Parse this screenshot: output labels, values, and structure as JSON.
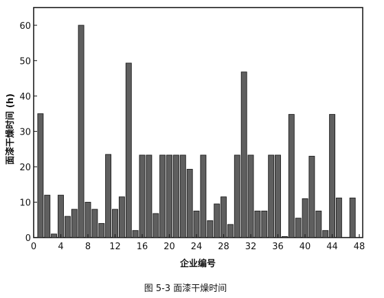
{
  "chart_data": {
    "type": "bar",
    "title": "",
    "xlabel": "企业编号",
    "ylabel": "面漆干燥时间 (h)",
    "x": [
      1,
      2,
      3,
      4,
      5,
      6,
      7,
      8,
      9,
      10,
      11,
      12,
      13,
      14,
      15,
      16,
      17,
      18,
      19,
      20,
      21,
      22,
      23,
      24,
      25,
      26,
      27,
      28,
      29,
      30,
      31,
      32,
      33,
      34,
      35,
      36,
      37,
      38,
      39,
      40,
      41,
      42,
      43,
      44,
      45,
      46,
      47
    ],
    "values": [
      35,
      12,
      1,
      12,
      6,
      8,
      60,
      10,
      8,
      4,
      23.5,
      8,
      11.5,
      49.3,
      2,
      23.3,
      23.3,
      6.8,
      23.3,
      23.3,
      23.3,
      23.3,
      19.3,
      7.5,
      23.3,
      4.8,
      9.5,
      11.5,
      3.7,
      23.3,
      46.8,
      23.3,
      7.5,
      7.5,
      23.3,
      23.3,
      0.3,
      34.8,
      5.5,
      11,
      23,
      7.5,
      2,
      34.8,
      11.2,
      0,
      11.2
    ],
    "xlim": [
      0,
      48.5
    ],
    "ylim": [
      0,
      65
    ],
    "xticks": [
      0,
      4,
      8,
      12,
      16,
      20,
      24,
      28,
      32,
      36,
      40,
      44,
      48
    ],
    "yticks": [
      0,
      10,
      20,
      30,
      40,
      50,
      60
    ],
    "grid": false,
    "legend": "none",
    "colors": {
      "bar_fill": "#5f5f5f",
      "bar_edge": "#1a1a1a"
    }
  },
  "caption": "图 5-3 面漆干燥时间"
}
